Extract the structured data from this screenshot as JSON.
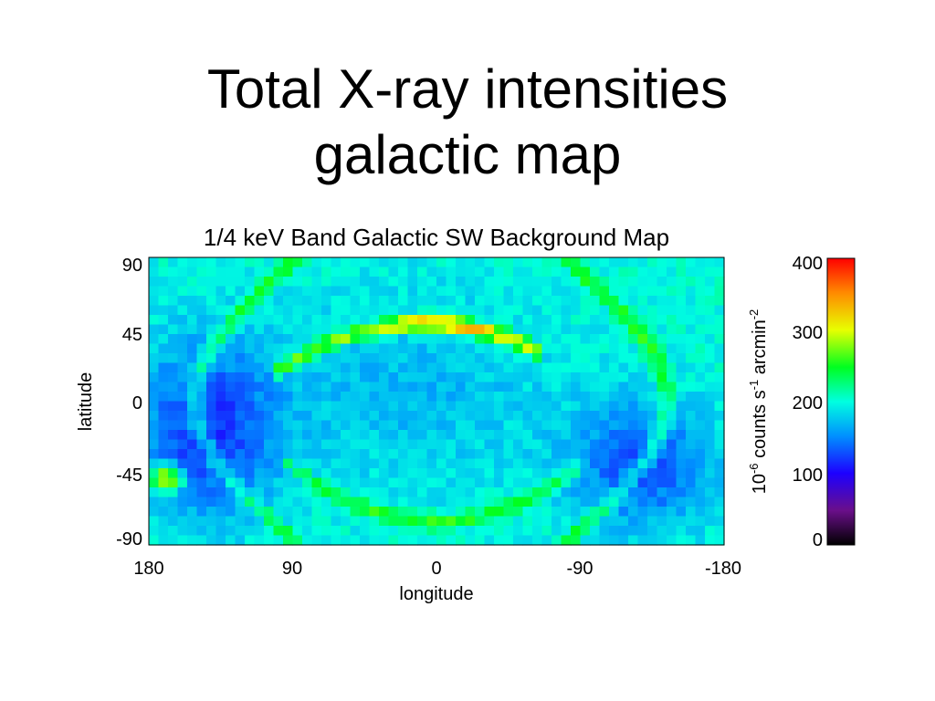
{
  "slide": {
    "title_line1": "Total X-ray intensities",
    "title_line2": "galactic map"
  },
  "chart_data": {
    "type": "heatmap",
    "title": "1/4 keV Band Galactic SW Background Map",
    "xlabel": "longitude",
    "ylabel": "latitude",
    "x_ticks": [
      "180",
      "90",
      "0",
      "-90",
      "-180"
    ],
    "y_ticks": [
      "90",
      "45",
      "0",
      "-45",
      "-90"
    ],
    "xlim": [
      180,
      -180
    ],
    "ylim": [
      -90,
      90
    ],
    "grid": false,
    "colormap": "rainbow (black-purple-blue-cyan-green-yellow-orange-red)",
    "colorbar": {
      "label_prefix": "10",
      "label_exp1": "-6",
      "label_mid": " counts s",
      "label_exp2": "-1",
      "label_mid2": " arcmin",
      "label_exp3": "-2",
      "ticks": [
        "400",
        "300",
        "200",
        "100",
        "0"
      ],
      "range": [
        0,
        400
      ]
    },
    "background_level": 200,
    "features": [
      {
        "name": "northern arc",
        "peak_value": 360
      },
      {
        "name": "southern arc",
        "peak_value": 250
      },
      {
        "name": "eastern limb",
        "peak_value": 250
      },
      {
        "name": "western limb",
        "peak_value": 250
      },
      {
        "name": "western blue region",
        "min_value": 120
      },
      {
        "name": "eastern blue region",
        "min_value": 130
      }
    ]
  }
}
